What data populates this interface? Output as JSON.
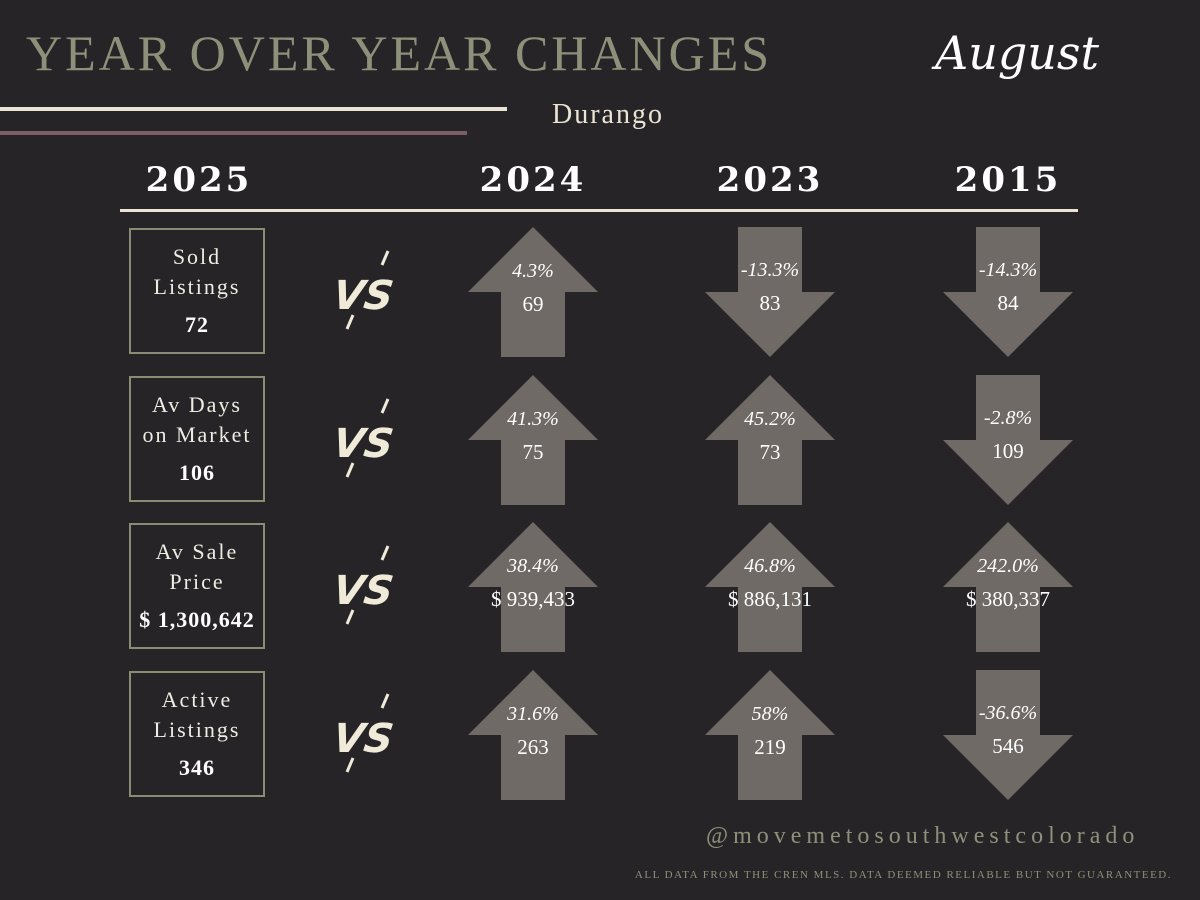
{
  "header": {
    "title": "YEAR OVER YEAR CHANGES",
    "month": "August",
    "location": "Durango"
  },
  "years": [
    "2025",
    "2024",
    "2023",
    "2015"
  ],
  "vs_label": "VS",
  "metrics": [
    {
      "label_line1": "Sold",
      "label_line2": "Listings",
      "value_2025": "72",
      "comparisons": [
        {
          "pct": "4.3%",
          "value": "69",
          "direction": "up"
        },
        {
          "pct": "-13.3%",
          "value": "83",
          "direction": "down"
        },
        {
          "pct": "-14.3%",
          "value": "84",
          "direction": "down"
        }
      ]
    },
    {
      "label_line1": "Av Days",
      "label_line2": "on Market",
      "value_2025": "106",
      "comparisons": [
        {
          "pct": "41.3%",
          "value": "75",
          "direction": "up"
        },
        {
          "pct": "45.2%",
          "value": "73",
          "direction": "up"
        },
        {
          "pct": "-2.8%",
          "value": "109",
          "direction": "down"
        }
      ]
    },
    {
      "label_line1": "Av Sale",
      "label_line2": "Price",
      "value_2025": "$ 1,300,642",
      "comparisons": [
        {
          "pct": "38.4%",
          "value": "$ 939,433",
          "direction": "up"
        },
        {
          "pct": "46.8%",
          "value": "$ 886,131",
          "direction": "up"
        },
        {
          "pct": "242.0%",
          "value": "$ 380,337",
          "direction": "up"
        }
      ]
    },
    {
      "label_line1": "Active",
      "label_line2": "Listings",
      "value_2025": "346",
      "comparisons": [
        {
          "pct": "31.6%",
          "value": "263",
          "direction": "up"
        },
        {
          "pct": "58%",
          "value": "219",
          "direction": "up"
        },
        {
          "pct": "-36.6%",
          "value": "546",
          "direction": "down"
        }
      ]
    }
  ],
  "footer": {
    "handle": "@movemetosouthwestcolorado",
    "disclaimer": "ALL DATA FROM THE CREN MLS. DATA DEEMED RELIABLE BUT NOT GUARANTEED."
  },
  "colors": {
    "background": "#262427",
    "title": "#8e9179",
    "arrow": "#6f6a66",
    "box_border": "#8a8d73",
    "accent_line": "#7a5f66"
  }
}
